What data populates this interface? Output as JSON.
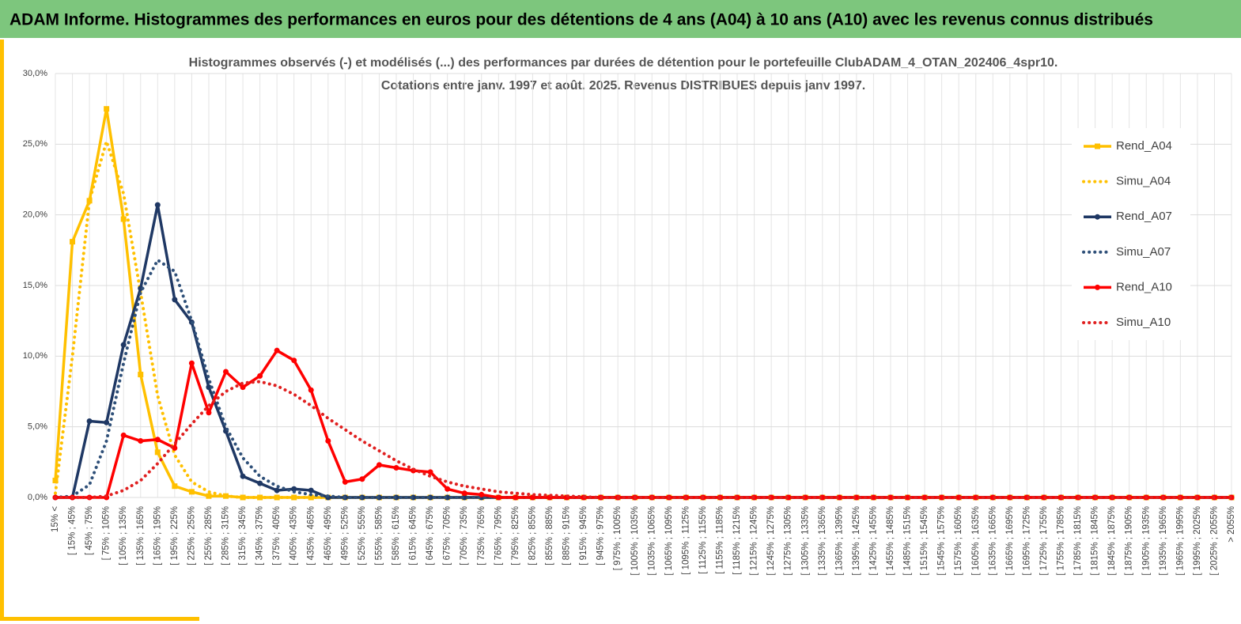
{
  "header": {
    "title": "ADAM Informe. Histogrammes des performances en euros pour des détentions de 4 ans (A04) à 10 ans (A10) avec les revenus connus distribués"
  },
  "chart_data": {
    "type": "line",
    "title": "Histogrammes observés (-) et modélisés (...) des performances par durées de détention pour le portefeuille ClubADAM_4_OTAN_202406_4spr10.",
    "subtitle": "Cotations entre janv. 1997 et août. 2025. Revenus DISTRIBUES depuis janv 1997.",
    "categories": [
      "15% <",
      "[ 15% ; 45%",
      "[ 45% ; 75%",
      "[ 75% ; 105%",
      "[ 105% ; 135%",
      "[ 135% ; 165%",
      "[ 165% ; 195%",
      "[ 195% ; 225%",
      "[ 225% ; 255%",
      "[ 255% ; 285%",
      "[ 285% ; 315%",
      "[ 315% ; 345%",
      "[ 345% ; 375%",
      "[ 375% ; 405%",
      "[ 405% ; 435%",
      "[ 435% ; 465%",
      "[ 465% ; 495%",
      "[ 495% ; 525%",
      "[ 525% ; 555%",
      "[ 555% ; 585%",
      "[ 585% ; 615%",
      "[ 615% ; 645%",
      "[ 645% ; 675%",
      "[ 675% ; 705%",
      "[ 705% ; 735%",
      "[ 735% ; 765%",
      "[ 765% ; 795%",
      "[ 795% ; 825%",
      "[ 825% ; 855%",
      "[ 855% ; 885%",
      "[ 885% ; 915%",
      "[ 915% ; 945%",
      "[ 945% ; 975%",
      "[ 975% ; 1005%",
      "[ 1005% ; 1035%",
      "[ 1035% ; 1065%",
      "[ 1065% ; 1095%",
      "[ 1095% ; 1125%",
      "[ 1125% ; 1155%",
      "[ 1155% ; 1185%",
      "[ 1185% ; 1215%",
      "[ 1215% ; 1245%",
      "[ 1245% ; 1275%",
      "[ 1275% ; 1305%",
      "[ 1305% ; 1335%",
      "[ 1335% ; 1365%",
      "[ 1365% ; 1395%",
      "[ 1395% ; 1425%",
      "[ 1425% ; 1455%",
      "[ 1455% ; 1485%",
      "[ 1485% ; 1515%",
      "[ 1515% ; 1545%",
      "[ 1545% ; 1575%",
      "[ 1575% ; 1605%",
      "[ 1605% ; 1635%",
      "[ 1635% ; 1665%",
      "[ 1665% ; 1695%",
      "[ 1695% ; 1725%",
      "[ 1725% ; 1755%",
      "[ 1755% ; 1785%",
      "[ 1785% ; 1815%",
      "[ 1815% ; 1845%",
      "[ 1845% ; 1875%",
      "[ 1875% ; 1905%",
      "[ 1905% ; 1935%",
      "[ 1935% ; 1965%",
      "[ 1965% ; 1995%",
      "[ 1995% ; 2025%",
      "[ 2025% ; 2055%",
      "> 2055%"
    ],
    "series": [
      {
        "name": "Rend_A04",
        "color": "#ffc000",
        "dash": false,
        "marker": "square",
        "values": [
          1.2,
          18.1,
          21.0,
          27.5,
          19.7,
          8.7,
          3.2,
          0.8,
          0.4,
          0.1,
          0.1,
          0,
          0,
          0,
          0,
          0,
          0,
          0,
          0,
          0,
          0,
          0,
          0,
          0,
          0,
          0,
          0,
          0,
          0,
          0,
          0,
          0,
          0,
          0,
          0,
          0,
          0,
          0,
          0,
          0,
          0,
          0,
          0,
          0,
          0,
          0,
          0,
          0,
          0,
          0,
          0,
          0,
          0,
          0,
          0,
          0,
          0,
          0,
          0,
          0,
          0,
          0,
          0,
          0,
          0,
          0,
          0,
          0,
          0,
          0
        ]
      },
      {
        "name": "Simu_A04",
        "color": "#ffc000",
        "dash": true,
        "marker": null,
        "values": [
          0.3,
          10.0,
          21.0,
          25.2,
          21.5,
          14.5,
          7.2,
          3.0,
          1.1,
          0.4,
          0.1,
          0,
          0,
          0,
          0,
          0,
          0,
          0,
          0,
          0,
          0,
          0,
          0,
          0,
          0,
          0,
          0,
          0,
          0,
          0,
          0,
          0,
          0,
          0,
          0,
          0,
          0,
          0,
          0,
          0,
          0,
          0,
          0,
          0,
          0,
          0,
          0,
          0,
          0,
          0,
          0,
          0,
          0,
          0,
          0,
          0,
          0,
          0,
          0,
          0,
          0,
          0,
          0,
          0,
          0,
          0,
          0,
          0,
          0,
          0
        ]
      },
      {
        "name": "Rend_A07",
        "color": "#1f3864",
        "dash": false,
        "marker": "circle",
        "values": [
          0,
          0,
          5.4,
          5.3,
          10.8,
          14.8,
          20.7,
          14.0,
          12.4,
          7.8,
          4.7,
          1.5,
          1.0,
          0.5,
          0.6,
          0.5,
          0,
          0,
          0,
          0,
          0,
          0,
          0,
          0,
          0,
          0,
          0,
          0,
          0,
          0,
          0,
          0,
          0,
          0,
          0,
          0,
          0,
          0,
          0,
          0,
          0,
          0,
          0,
          0,
          0,
          0,
          0,
          0,
          0,
          0,
          0,
          0,
          0,
          0,
          0,
          0,
          0,
          0,
          0,
          0,
          0,
          0,
          0,
          0,
          0,
          0,
          0,
          0,
          0,
          0
        ]
      },
      {
        "name": "Simu_A07",
        "color": "#2f5079",
        "dash": true,
        "marker": null,
        "values": [
          0,
          0.1,
          0.9,
          4.0,
          9.5,
          14.5,
          16.8,
          16.0,
          12.5,
          8.4,
          5.0,
          2.8,
          1.5,
          0.8,
          0.4,
          0.2,
          0.1,
          0,
          0,
          0,
          0,
          0,
          0,
          0,
          0,
          0,
          0,
          0,
          0,
          0,
          0,
          0,
          0,
          0,
          0,
          0,
          0,
          0,
          0,
          0,
          0,
          0,
          0,
          0,
          0,
          0,
          0,
          0,
          0,
          0,
          0,
          0,
          0,
          0,
          0,
          0,
          0,
          0,
          0,
          0,
          0,
          0,
          0,
          0,
          0,
          0,
          0,
          0,
          0,
          0
        ]
      },
      {
        "name": "Rend_A10",
        "color": "#ff0000",
        "dash": false,
        "marker": "circle",
        "values": [
          0,
          0,
          0,
          0,
          4.4,
          4.0,
          4.1,
          3.5,
          9.5,
          6.0,
          8.9,
          7.8,
          8.6,
          10.4,
          9.7,
          7.6,
          4.0,
          1.1,
          1.3,
          2.3,
          2.1,
          1.9,
          1.8,
          0.6,
          0.3,
          0.2,
          0,
          0,
          0,
          0,
          0,
          0,
          0,
          0,
          0,
          0,
          0,
          0,
          0,
          0,
          0,
          0,
          0,
          0,
          0,
          0,
          0,
          0,
          0,
          0,
          0,
          0,
          0,
          0,
          0,
          0,
          0,
          0,
          0,
          0,
          0,
          0,
          0,
          0,
          0,
          0,
          0,
          0,
          0,
          0
        ]
      },
      {
        "name": "Simu_A10",
        "color": "#e02020",
        "dash": true,
        "marker": null,
        "values": [
          0,
          0,
          0,
          0.1,
          0.5,
          1.2,
          2.4,
          3.8,
          5.2,
          6.5,
          7.5,
          8.1,
          8.2,
          7.9,
          7.3,
          6.5,
          5.6,
          4.8,
          4.0,
          3.3,
          2.6,
          2.0,
          1.5,
          1.1,
          0.8,
          0.6,
          0.4,
          0.3,
          0.2,
          0.15,
          0.1,
          0.05,
          0,
          0,
          0,
          0,
          0,
          0,
          0,
          0,
          0,
          0,
          0,
          0,
          0,
          0,
          0,
          0,
          0,
          0,
          0,
          0,
          0,
          0,
          0,
          0,
          0,
          0,
          0,
          0,
          0,
          0,
          0,
          0,
          0,
          0,
          0,
          0,
          0,
          0
        ]
      }
    ],
    "ylim": [
      0,
      30
    ],
    "yticks": [
      {
        "value": 0,
        "label": "0,0%"
      },
      {
        "value": 5,
        "label": "5,0%"
      },
      {
        "value": 10,
        "label": "10,0%"
      },
      {
        "value": 15,
        "label": "15,0%"
      },
      {
        "value": 20,
        "label": "20,0%"
      },
      {
        "value": 25,
        "label": "25,0%"
      },
      {
        "value": 30,
        "label": "30,0%"
      }
    ],
    "grid": true,
    "legend": "right"
  }
}
